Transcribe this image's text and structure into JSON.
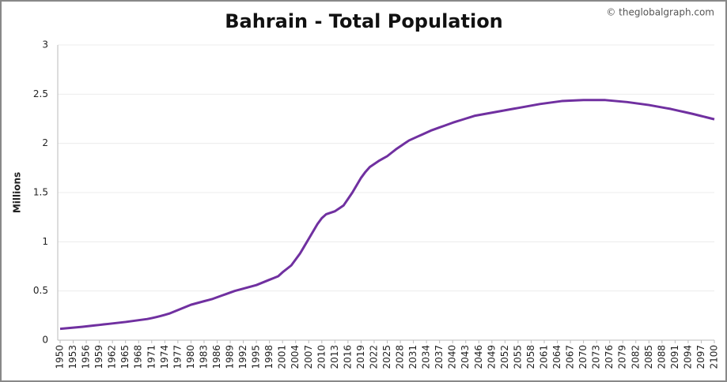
{
  "chart_data": {
    "type": "line",
    "title": "Bahrain - Total Population",
    "attribution": "© theglobalgraph.com",
    "y_label": "Millions",
    "x": [
      1950,
      1951,
      1952,
      1953,
      1954,
      1955,
      1956,
      1957,
      1958,
      1959,
      1960,
      1961,
      1962,
      1963,
      1964,
      1965,
      1966,
      1967,
      1968,
      1969,
      1970,
      1971,
      1972,
      1973,
      1974,
      1975,
      1976,
      1977,
      1978,
      1979,
      1980,
      1981,
      1982,
      1983,
      1984,
      1985,
      1986,
      1987,
      1988,
      1989,
      1990,
      1991,
      1992,
      1993,
      1994,
      1995,
      1996,
      1997,
      1998,
      1999,
      2000,
      2001,
      2002,
      2003,
      2004,
      2005,
      2006,
      2007,
      2008,
      2009,
      2010,
      2011,
      2012,
      2013,
      2014,
      2015,
      2016,
      2017,
      2018,
      2019,
      2020,
      2021,
      2022,
      2023,
      2024,
      2025,
      2026,
      2027,
      2028,
      2029,
      2030,
      2031,
      2032,
      2033,
      2034,
      2035,
      2036,
      2037,
      2038,
      2039,
      2040,
      2041,
      2042,
      2043,
      2044,
      2045,
      2046,
      2047,
      2048,
      2049,
      2050,
      2051,
      2052,
      2053,
      2054,
      2055,
      2056,
      2057,
      2058,
      2059,
      2060,
      2061,
      2062,
      2063,
      2064,
      2065,
      2066,
      2067,
      2068,
      2069,
      2070,
      2071,
      2072,
      2073,
      2074,
      2075,
      2076,
      2077,
      2078,
      2079,
      2080,
      2081,
      2082,
      2083,
      2084,
      2085,
      2086,
      2087,
      2088,
      2089,
      2090,
      2091,
      2092,
      2093,
      2094,
      2095,
      2096,
      2097,
      2098,
      2099,
      2100
    ],
    "values": [
      0.115,
      0.119,
      0.123,
      0.127,
      0.131,
      0.135,
      0.14,
      0.145,
      0.15,
      0.155,
      0.16,
      0.165,
      0.17,
      0.175,
      0.18,
      0.185,
      0.191,
      0.197,
      0.203,
      0.209,
      0.215,
      0.224,
      0.234,
      0.245,
      0.257,
      0.27,
      0.288,
      0.306,
      0.324,
      0.342,
      0.36,
      0.372,
      0.384,
      0.396,
      0.408,
      0.42,
      0.436,
      0.452,
      0.468,
      0.484,
      0.5,
      0.512,
      0.524,
      0.536,
      0.548,
      0.56,
      0.578,
      0.596,
      0.614,
      0.632,
      0.65,
      0.69,
      0.725,
      0.76,
      0.82,
      0.88,
      0.955,
      1.03,
      1.105,
      1.18,
      1.24,
      1.28,
      1.295,
      1.31,
      1.34,
      1.37,
      1.435,
      1.5,
      1.575,
      1.65,
      1.71,
      1.76,
      1.79,
      1.82,
      1.845,
      1.87,
      1.905,
      1.94,
      1.97,
      2.0,
      2.03,
      2.05,
      2.07,
      2.09,
      2.11,
      2.13,
      2.146,
      2.162,
      2.178,
      2.194,
      2.21,
      2.224,
      2.238,
      2.252,
      2.266,
      2.28,
      2.288,
      2.296,
      2.304,
      2.312,
      2.32,
      2.328,
      2.336,
      2.344,
      2.352,
      2.36,
      2.368,
      2.376,
      2.384,
      2.392,
      2.4,
      2.406,
      2.412,
      2.418,
      2.424,
      2.43,
      2.432,
      2.434,
      2.436,
      2.438,
      2.44,
      2.44,
      2.44,
      2.44,
      2.44,
      2.44,
      2.436,
      2.432,
      2.428,
      2.424,
      2.42,
      2.414,
      2.408,
      2.402,
      2.396,
      2.39,
      2.382,
      2.374,
      2.366,
      2.358,
      2.35,
      2.34,
      2.33,
      2.32,
      2.31,
      2.3,
      2.289,
      2.278,
      2.267,
      2.256,
      2.245
    ],
    "color": "#7030a0",
    "xlim": [
      1950,
      2100
    ],
    "ylim": [
      0,
      3
    ],
    "xticks": [
      1950,
      1953,
      1956,
      1959,
      1962,
      1965,
      1968,
      1971,
      1974,
      1977,
      1980,
      1983,
      1986,
      1989,
      1992,
      1995,
      1998,
      2001,
      2004,
      2007,
      2010,
      2013,
      2016,
      2019,
      2022,
      2025,
      2028,
      2031,
      2034,
      2037,
      2040,
      2043,
      2046,
      2049,
      2052,
      2055,
      2058,
      2061,
      2064,
      2067,
      2070,
      2073,
      2076,
      2079,
      2082,
      2085,
      2088,
      2091,
      2094,
      2097,
      2100
    ],
    "yticks": [
      0,
      0.5,
      1,
      1.5,
      2,
      2.5,
      3
    ],
    "grid": true
  }
}
